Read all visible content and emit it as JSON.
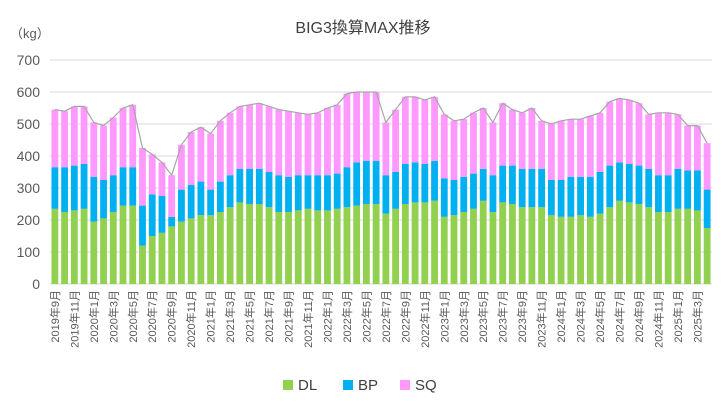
{
  "chart_data": {
    "type": "bar",
    "stacked": true,
    "title": "BIG3換算MAX推移",
    "ylabel": "（kg）",
    "ylim": [
      0,
      700
    ],
    "yticks": [
      0,
      100,
      200,
      300,
      400,
      500,
      600,
      700
    ],
    "grid": true,
    "legend_position": "bottom",
    "colors": {
      "DL": "#92d050",
      "BP": "#00b0f0",
      "SQ": "#ff99ff",
      "total_line": "#a6a6a6",
      "grid": "#d9d9d9"
    },
    "categories": [
      "2019年9月",
      "2019年10月",
      "2019年11月",
      "2019年12月",
      "2020年1月",
      "2020年2月",
      "2020年3月",
      "2020年4月",
      "2020年5月",
      "2020年6月",
      "2020年7月",
      "2020年8月",
      "2020年9月",
      "2020年10月",
      "2020年11月",
      "2020年12月",
      "2021年1月",
      "2021年2月",
      "2021年3月",
      "2021年4月",
      "2021年5月",
      "2021年6月",
      "2021年7月",
      "2021年8月",
      "2021年9月",
      "2021年10月",
      "2021年11月",
      "2021年12月",
      "2022年1月",
      "2022年2月",
      "2022年3月",
      "2022年4月",
      "2022年5月",
      "2022年6月",
      "2022年7月",
      "2022年8月",
      "2022年9月",
      "2022年10月",
      "2022年11月",
      "2022年12月",
      "2023年1月",
      "2023年2月",
      "2023年3月",
      "2023年4月",
      "2023年5月",
      "2023年6月",
      "2023年7月",
      "2023年8月",
      "2023年9月",
      "2023年10月",
      "2023年11月",
      "2023年12月",
      "2024年1月",
      "2024年2月",
      "2024年3月",
      "2024年4月",
      "2024年5月",
      "2024年6月",
      "2024年7月",
      "2024年8月",
      "2024年9月",
      "2024年10月",
      "2024年11月",
      "2024年12月",
      "2025年1月",
      "2025年2月",
      "2025年3月",
      "2025年4月"
    ],
    "xtick_labels": [
      "2019年9月",
      "2019年11月",
      "2020年1月",
      "2020年3月",
      "2020年5月",
      "2020年7月",
      "2020年9月",
      "2020年11月",
      "2021年1月",
      "2021年3月",
      "2021年5月",
      "2021年7月",
      "2021年9月",
      "2021年11月",
      "2022年1月",
      "2022年3月",
      "2022年5月",
      "2022年7月",
      "2022年9月",
      "2022年11月",
      "2023年1月",
      "2023年3月",
      "2023年5月",
      "2023年7月",
      "2023年9月",
      "2023年11月",
      "2024年1月",
      "2024年3月",
      "2024年5月",
      "2024年7月",
      "2024年9月",
      "2024年11月",
      "2025年1月",
      "2025年3月"
    ],
    "series": [
      {
        "name": "DL",
        "values": [
          235,
          225,
          230,
          235,
          195,
          205,
          225,
          245,
          245,
          120,
          150,
          160,
          180,
          195,
          205,
          215,
          215,
          225,
          240,
          255,
          250,
          250,
          240,
          225,
          225,
          230,
          235,
          230,
          230,
          235,
          240,
          245,
          250,
          250,
          220,
          235,
          250,
          255,
          255,
          260,
          210,
          215,
          225,
          235,
          260,
          225,
          255,
          250,
          240,
          240,
          240,
          215,
          210,
          210,
          215,
          210,
          220,
          240,
          260,
          255,
          250,
          240,
          225,
          225,
          235,
          235,
          230,
          175
        ]
      },
      {
        "name": "BP",
        "values": [
          130,
          140,
          140,
          140,
          140,
          120,
          115,
          120,
          120,
          125,
          130,
          115,
          30,
          100,
          105,
          105,
          80,
          95,
          100,
          105,
          110,
          110,
          110,
          115,
          110,
          110,
          105,
          110,
          110,
          110,
          125,
          135,
          135,
          135,
          120,
          115,
          125,
          125,
          120,
          125,
          120,
          110,
          110,
          110,
          100,
          115,
          115,
          120,
          120,
          120,
          120,
          110,
          115,
          125,
          120,
          125,
          130,
          130,
          120,
          120,
          120,
          120,
          115,
          115,
          125,
          120,
          125,
          120
        ]
      },
      {
        "name": "SQ",
        "values": [
          180,
          175,
          185,
          180,
          170,
          170,
          180,
          185,
          195,
          180,
          125,
          105,
          130,
          140,
          165,
          170,
          175,
          190,
          195,
          195,
          200,
          205,
          205,
          205,
          205,
          195,
          190,
          195,
          210,
          215,
          230,
          220,
          215,
          215,
          165,
          195,
          210,
          205,
          200,
          200,
          200,
          185,
          180,
          190,
          190,
          165,
          195,
          175,
          175,
          190,
          150,
          175,
          185,
          180,
          180,
          190,
          185,
          200,
          200,
          200,
          195,
          170,
          195,
          195,
          170,
          140,
          140,
          145
        ]
      }
    ]
  }
}
